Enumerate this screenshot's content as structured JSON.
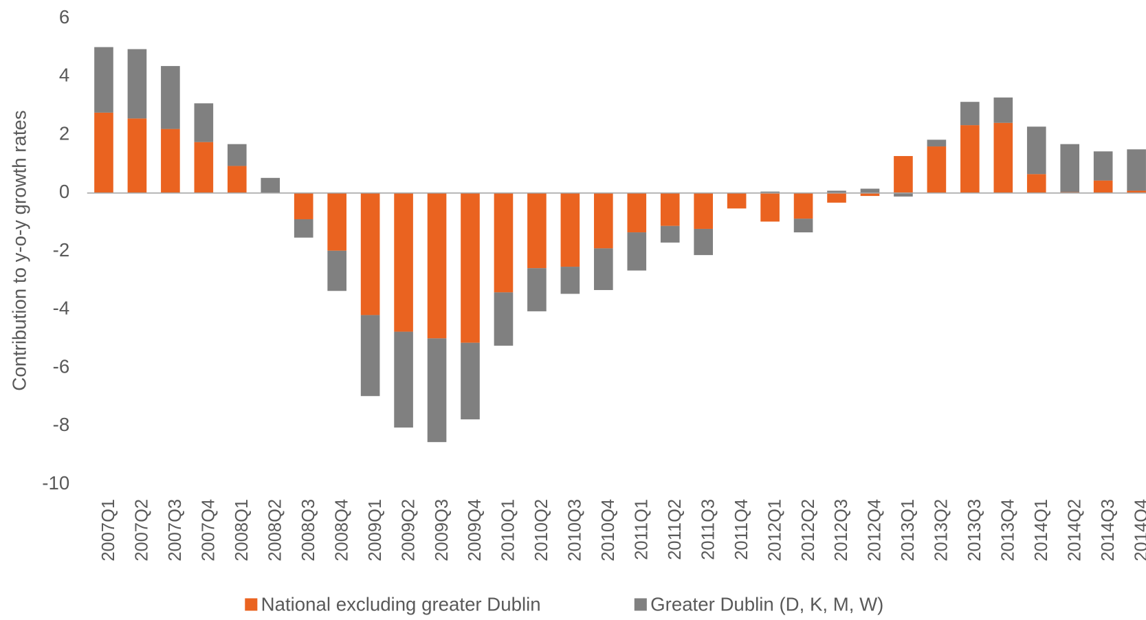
{
  "chart_data": {
    "type": "bar",
    "stacked": true,
    "y_label": "Contribution to y-o-y growth rates",
    "categories": [
      "2007Q1",
      "2007Q2",
      "2007Q3",
      "2007Q4",
      "2008Q1",
      "2008Q2",
      "2008Q3",
      "2008Q4",
      "2009Q1",
      "2009Q2",
      "2009Q3",
      "2009Q4",
      "2010Q1",
      "2010Q2",
      "2010Q3",
      "2010Q4",
      "2011Q1",
      "2011Q2",
      "2011Q3",
      "2011Q4",
      "2012Q1",
      "2012Q2",
      "2012Q3",
      "2012Q4",
      "2013Q1",
      "2013Q2",
      "2013Q3",
      "2013Q4",
      "2014Q1",
      "2014Q2",
      "2014Q3",
      "2014Q4"
    ],
    "series": [
      {
        "name": "National excluding greater Dublin",
        "color": "#ea6320",
        "values": [
          2.76,
          2.56,
          2.2,
          1.75,
          0.93,
          0.02,
          -0.9,
          -1.98,
          -4.19,
          -4.76,
          -4.99,
          -5.14,
          -3.41,
          -2.58,
          -2.53,
          -1.9,
          -1.35,
          -1.13,
          -1.23,
          -0.53,
          -0.98,
          -0.88,
          -0.33,
          -0.1,
          1.27,
          1.6,
          2.33,
          2.41,
          0.65,
          0.03,
          0.43,
          0.08
        ]
      },
      {
        "name": "Greater Dublin (D, K, M, W)",
        "color": "#808080",
        "values": [
          2.25,
          2.38,
          2.16,
          1.33,
          0.75,
          0.5,
          -0.63,
          -1.38,
          -2.78,
          -3.29,
          -3.56,
          -2.63,
          -1.83,
          -1.48,
          -0.93,
          -1.43,
          -1.31,
          -0.57,
          -0.9,
          0.0,
          0.05,
          -0.47,
          0.08,
          0.15,
          -0.12,
          0.23,
          0.8,
          0.87,
          1.63,
          1.65,
          1.0,
          1.42
        ]
      }
    ],
    "ylim": [
      -10,
      6
    ],
    "yticks": [
      -10,
      -8,
      -6,
      -4,
      -2,
      0,
      2,
      4,
      6
    ],
    "grid": false
  }
}
